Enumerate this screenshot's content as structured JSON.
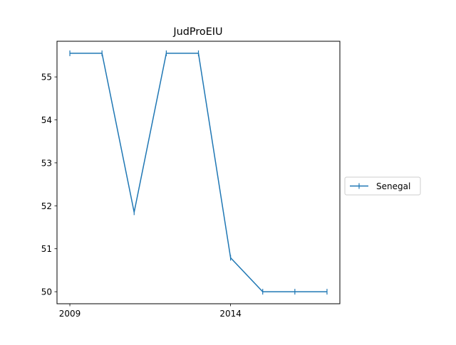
{
  "chart_data": {
    "type": "line",
    "title": "JudProEIU",
    "xlabel": "",
    "ylabel": "",
    "x": [
      2009,
      2010,
      2011,
      2012,
      2013,
      2014,
      2015,
      2016,
      2017
    ],
    "series": [
      {
        "name": "Senegal",
        "values": [
          55.55,
          55.55,
          51.85,
          55.55,
          55.55,
          50.79,
          50.0,
          50.0,
          50.0
        ],
        "color": "#1f77b4",
        "marker": "vertical-tick"
      }
    ],
    "xlim": [
      2008.6,
      2017.4
    ],
    "ylim": [
      49.72,
      55.83
    ],
    "xticks": [
      2009,
      2014
    ],
    "xtick_labels": [
      "2009",
      "2014"
    ],
    "yticks": [
      50,
      51,
      52,
      53,
      54,
      55
    ],
    "ytick_labels": [
      "50",
      "51",
      "52",
      "53",
      "54",
      "55"
    ],
    "grid": false,
    "legend": {
      "placement": "outside-right",
      "entries": [
        "Senegal"
      ]
    }
  }
}
